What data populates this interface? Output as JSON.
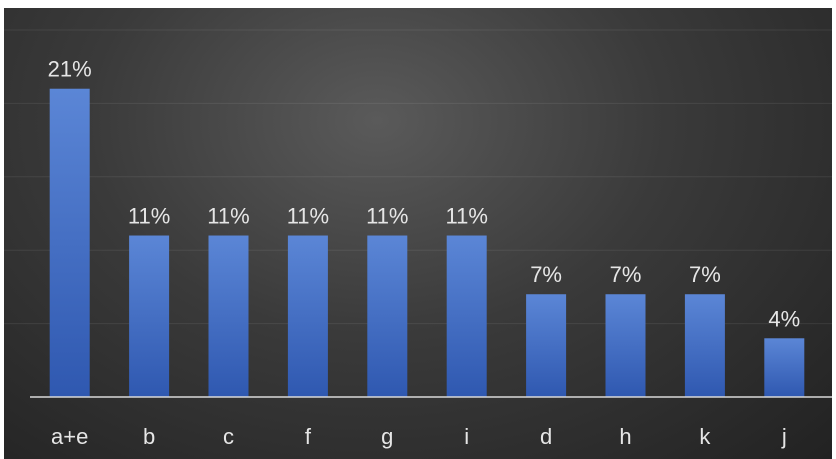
{
  "chart_data": {
    "type": "bar",
    "title": "",
    "xlabel": "",
    "ylabel": "",
    "categories": [
      "a+e",
      "b",
      "c",
      "f",
      "g",
      "i",
      "d",
      "h",
      "k",
      "j"
    ],
    "values": [
      21,
      11,
      11,
      11,
      11,
      11,
      7,
      7,
      7,
      4
    ],
    "data_labels": [
      "21%",
      "11%",
      "11%",
      "11%",
      "11%",
      "11%",
      "7%",
      "7%",
      "7%",
      "4%"
    ],
    "ylim": [
      0,
      25
    ],
    "grid": true,
    "legend": "none",
    "bar_color": "#4472c4",
    "background_color": "#3a3a3a",
    "text_color": "#e6e6e6"
  }
}
